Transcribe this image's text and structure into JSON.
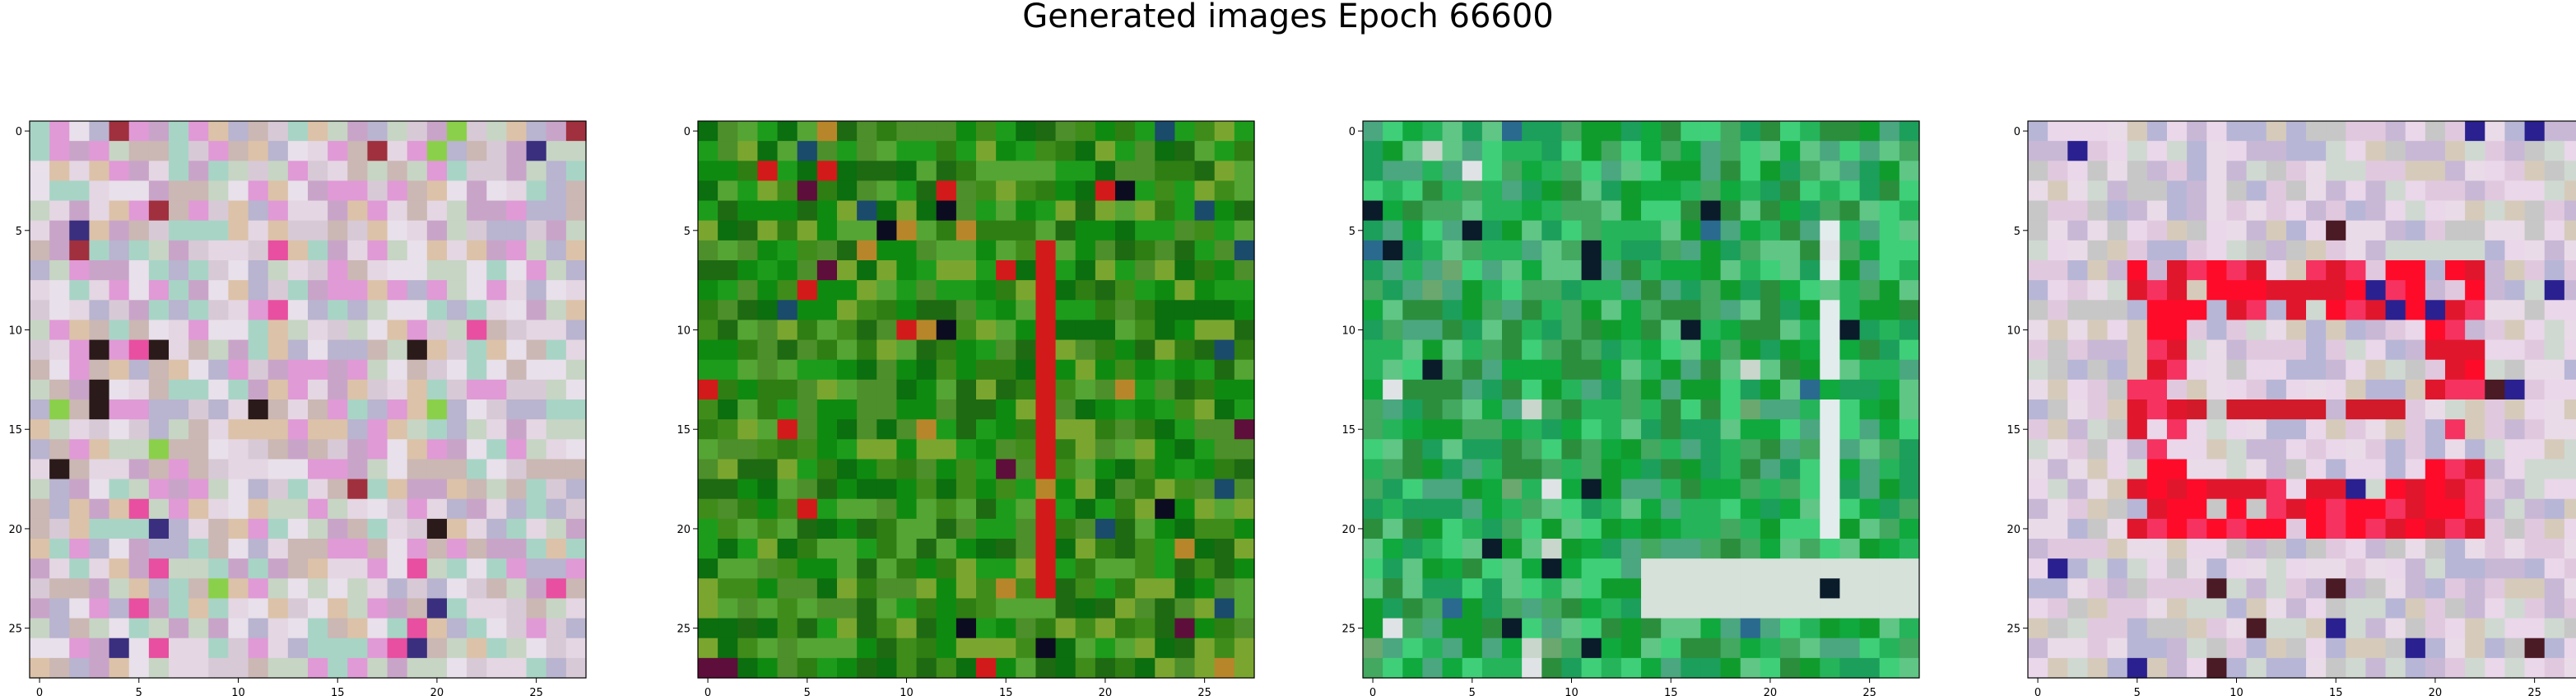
{
  "figure": {
    "title": "Generated images Epoch 66600"
  },
  "axes_ticks": {
    "x": [
      "0",
      "5",
      "10",
      "15",
      "20",
      "25"
    ],
    "y": [
      "0",
      "5",
      "10",
      "15",
      "20",
      "25"
    ]
  },
  "panels": [
    {
      "name": "panel-1",
      "description_hint": "pastel noise",
      "palette": [
        "#d8c9d6",
        "#c7d5c4",
        "#e4d6e2",
        "#b9b4cf",
        "#dcc2a8",
        "#e09ad6",
        "#a8d4c6",
        "#c9a4c9",
        "#e8e0ea",
        "#cbb7b4"
      ],
      "accents": [
        "#2a1a1a",
        "#8bd04a",
        "#a0303e",
        "#3a2f7e",
        "#e84fa0"
      ]
    },
    {
      "name": "panel-2",
      "description_hint": "green noise with red streak",
      "palette": [
        "#0f8a10",
        "#1d9c1c",
        "#3f8c1a",
        "#2e7e13",
        "#55a534",
        "#0b6e0f",
        "#7aa62f",
        "#1e6a12",
        "#4d8f2a"
      ],
      "accents": [
        "#d31a1a",
        "#0c0c20",
        "#b8862a",
        "#5e0e3a",
        "#1a4b6a"
      ]
    },
    {
      "name": "panel-3",
      "description_hint": "green/teal noise",
      "palette": [
        "#25b45a",
        "#0fa93e",
        "#2b8e3d",
        "#3fcf78",
        "#1c9f5a",
        "#43a860",
        "#4aa77f",
        "#109c2d",
        "#5fc685"
      ],
      "accents": [
        "#0a1b2a",
        "#c8d6cc",
        "#2a6a8e",
        "#dfe3e6",
        "#6aa870"
      ]
    },
    {
      "name": "panel-4",
      "description_hint": "pastel noise with red box",
      "palette": [
        "#e0c9de",
        "#cfd9d1",
        "#eadbe8",
        "#c8b8d6",
        "#d6cbbb",
        "#b8b6d6",
        "#ead7ea",
        "#c7c7c7"
      ],
      "accents": [
        "#ff0b2a",
        "#e0162d",
        "#f63260",
        "#4a1a25",
        "#2a2090"
      ]
    }
  ],
  "colors": {
    "axis": "#000000"
  }
}
